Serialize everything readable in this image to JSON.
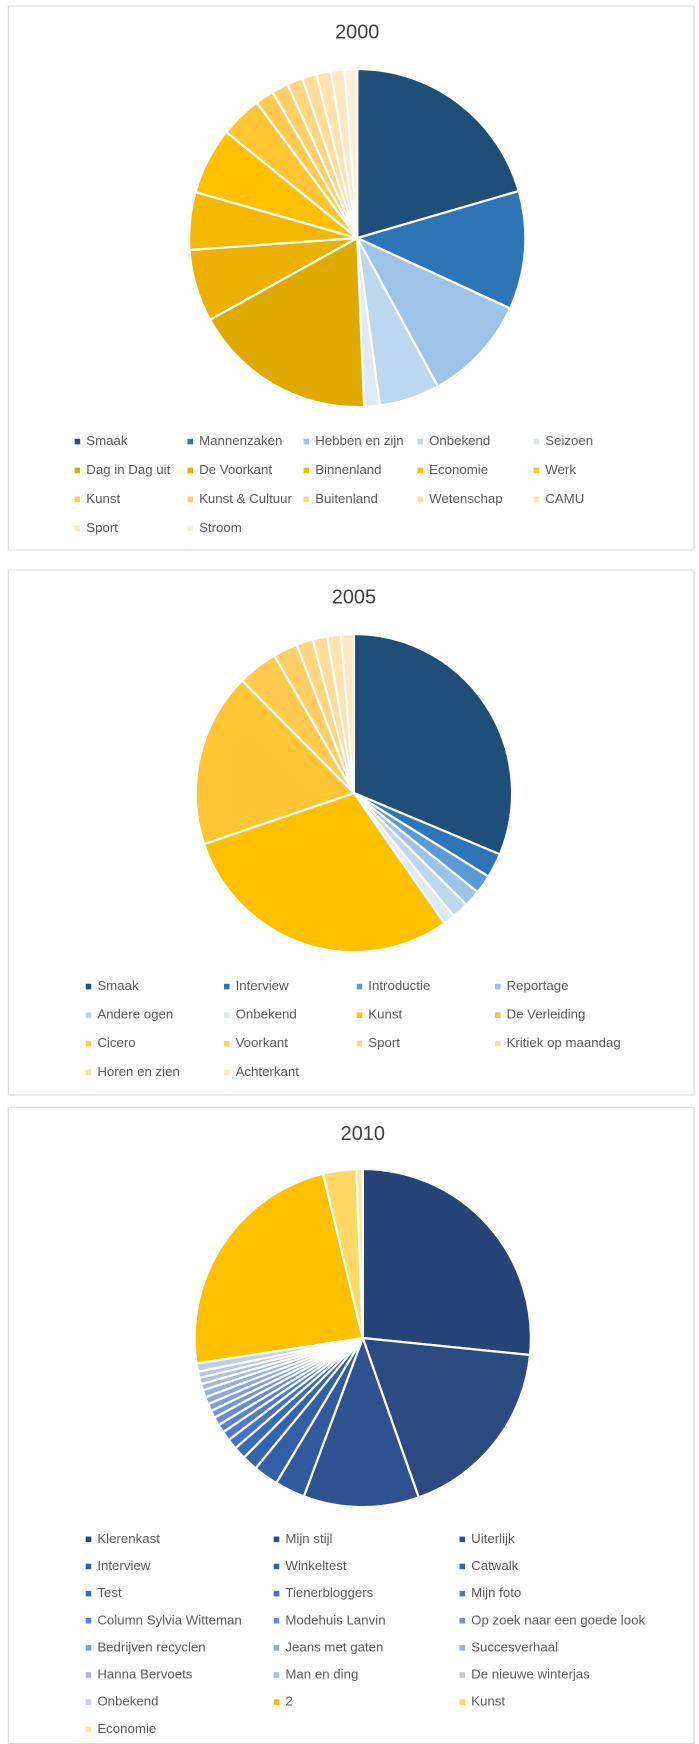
{
  "chart_data": [
    {
      "type": "pie",
      "title": "2000",
      "legend": "bottom",
      "categories": [
        "Smaak",
        "Mannenzaken",
        "Hebben en zijn",
        "Onbekend",
        "Seizoen",
        "Dag in Dag uit",
        "De Voorkant",
        "Binnenland",
        "Economie",
        "Werk",
        "Kunst",
        "Kunst & Cultuur",
        "Buitenland",
        "Wetenschap",
        "CAMU",
        "Sport",
        "Stroom"
      ],
      "values": [
        20.5,
        11.3,
        10.2,
        5.8,
        1.5,
        17.6,
        6.9,
        5.5,
        6.4,
        4.0,
        1.8,
        1.6,
        1.5,
        1.4,
        1.4,
        1.3,
        1.2
      ],
      "colors": [
        "#1f4e79",
        "#2e75b6",
        "#9dc3e6",
        "#bdd7ee",
        "#deebf7",
        "#dea900",
        "#ebb000",
        "#f5b800",
        "#ffc000",
        "#ffc533",
        "#ffca4d",
        "#ffcf66",
        "#ffd680",
        "#ffdc99",
        "#ffe2ad",
        "#ffe8c0",
        "#ffeed3"
      ]
    },
    {
      "type": "pie",
      "title": "2005",
      "legend": "bottom",
      "categories": [
        "Smaak",
        "Interview",
        "Introductie",
        "Reportage",
        "Andere ogen",
        "Onbekend",
        "Kunst",
        "De Verleiding",
        "Cicero",
        "Voorkant",
        "Sport",
        "Kritiek op maandag",
        "Horen en zien",
        "Achterkant"
      ],
      "values": [
        31.3,
        2.5,
        1.9,
        1.7,
        1.7,
        1.2,
        29.5,
        17.7,
        4.1,
        2.5,
        1.7,
        1.5,
        1.4,
        1.3
      ],
      "colors": [
        "#1f4e79",
        "#2e75b6",
        "#5b9bd5",
        "#9dc3e6",
        "#bdd7ee",
        "#deebf7",
        "#ffc000",
        "#ffc533",
        "#ffca4d",
        "#ffcf66",
        "#ffd680",
        "#ffdc99",
        "#ffe2ad",
        "#ffe8c0"
      ]
    },
    {
      "type": "pie",
      "title": "2010",
      "legend": "bottom",
      "categories": [
        "Klerenkast",
        "Mijn stijl",
        "Uiterlijk",
        "Interview",
        "Winkeltest",
        "Catwalk",
        "Test",
        "Tienerbloggers",
        "Mijn foto",
        "Column Sylvia Witteman",
        "Modehuis Lanvin",
        "Op zoek naar een goede look",
        "Bedrijven recyclen",
        "Jeans met gaten",
        "Succesverhaal",
        "Hanna Bervoets",
        "Man en ding",
        "De nieuwe winterjas",
        "Onbekend",
        "2",
        "Kunst",
        "Economie"
      ],
      "values": [
        26.6,
        18.0,
        11.1,
        2.9,
        2.4,
        1.5,
        1.2,
        1.0,
        0.9,
        0.8,
        0.8,
        0.7,
        0.7,
        0.7,
        0.7,
        0.6,
        0.6,
        0.6,
        0.8,
        23.6,
        3.2,
        0.6
      ],
      "colors": [
        "#264478",
        "#2a4a80",
        "#2e5290",
        "#305a9c",
        "#335fa6",
        "#3564ae",
        "#3a6ab4",
        "#4472c4",
        "#4f7bc8",
        "#5a83cc",
        "#668cd0",
        "#7195d3",
        "#7d9ed7",
        "#89a7db",
        "#94b0de",
        "#a0b9e2",
        "#abc1e5",
        "#b4c7e7",
        "#bfd0ea",
        "#ffc000",
        "#ffd966",
        "#ffe699"
      ]
    }
  ]
}
